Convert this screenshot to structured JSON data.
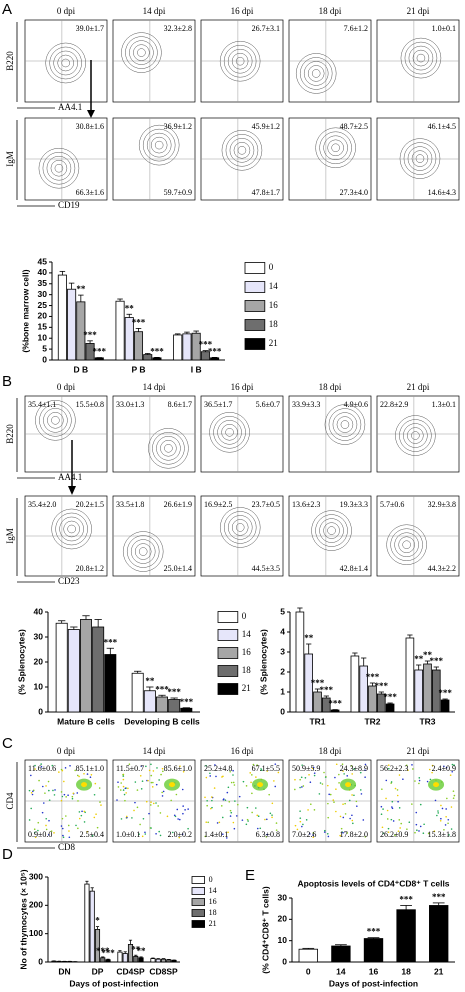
{
  "panels": [
    {
      "letter": "A",
      "headers": [
        "0 dpi",
        "14 dpi",
        "16 dpi",
        "18 dpi",
        "21 dpi"
      ],
      "rows": [
        {
          "y_label": "B220",
          "x_label": "AA4.1",
          "plots": [
            {
              "tr": "39.0±1.7"
            },
            {
              "tr": "32.3±2.8"
            },
            {
              "tr": "26.7±3.1"
            },
            {
              "tr": "7.6±1.2"
            },
            {
              "tr": "1.0±0.1"
            }
          ]
        },
        {
          "y_label": "IgM",
          "x_label": "CD19",
          "plots": [
            {
              "tr": "30.8±1.6",
              "br": "66.3±1.6"
            },
            {
              "tr": "36.9±1.2",
              "br": "59.7±0.9"
            },
            {
              "tr": "45.9±1.2",
              "br": "47.8±1.7"
            },
            {
              "tr": "48.7±2.5",
              "br": "27.3±4.0"
            },
            {
              "tr": "46.1±4.5",
              "br": "14.6±4.3"
            }
          ]
        }
      ]
    },
    {
      "letter": "B",
      "headers": [
        "0 dpi",
        "14 dpi",
        "16 dpi",
        "18 dpi",
        "21 dpi"
      ],
      "rows": [
        {
          "y_label": "B220",
          "x_label": "AA4.1",
          "plots": [
            {
              "tl": "35.4±1.1",
              "tr": "15.5±0.8"
            },
            {
              "tl": "33.0±1.3",
              "tr": "8.6±1.7"
            },
            {
              "tl": "36.5±1.7",
              "tr": "5.6±0.7"
            },
            {
              "tl": "33.9±3.3",
              "tr": "4.9±0.6"
            },
            {
              "tl": "22.8±2.9",
              "tr": "1.3±0.1"
            }
          ]
        },
        {
          "y_label": "IgM",
          "x_label": "CD23",
          "plots": [
            {
              "tl": "35.4±2.0",
              "tr": "20.2±1.5",
              "br": "20.8±1.2"
            },
            {
              "tl": "33.5±1.8",
              "tr": "26.6±1.9",
              "br": "25.0±1.4"
            },
            {
              "tl": "16.9±2.5",
              "tr": "23.7±0.5",
              "br": "44.5±3.5"
            },
            {
              "tl": "13.6±2.3",
              "tr": "19.3±3.3",
              "br": "42.8±1.4"
            },
            {
              "tl": "5.7±0.6",
              "tr": "32.9±3.8",
              "br": "44.3±2.2"
            }
          ]
        }
      ]
    },
    {
      "letter": "C",
      "headers": [
        "0 dpi",
        "14 dpi",
        "16 dpi",
        "18 dpi",
        "21 dpi"
      ],
      "rows": [
        {
          "y_label": "CD4",
          "x_label": "CD8",
          "plots": [
            {
              "tl": "11.6±0.6",
              "tr": "85.1±1.0",
              "bl": "0.9±0.0",
              "br": "2.5±0.4"
            },
            {
              "tl": "11.5±0.7",
              "tr": "85.6±1.0",
              "bl": "1.0±0.1",
              "br": "2.0±0.2"
            },
            {
              "tl": "25.2±4.8",
              "tr": "67.1±5.5",
              "bl": "1.4±0.1",
              "br": "6.3±0.8"
            },
            {
              "tl": "50.9±5.9",
              "tr": "24.3±8.9",
              "bl": "7.0±2.6",
              "br": "17.8±2.0"
            },
            {
              "tl": "56.2±2.3",
              "tr": "2.4±0.9",
              "bl": "26.2±0.9",
              "br": "15.3±1.8"
            }
          ]
        }
      ]
    }
  ],
  "chart_data": [
    {
      "type": "bar",
      "y_label": "(%bone marrow cell)",
      "categories": [
        "D B",
        "P B",
        "I B"
      ],
      "ylim": [
        0,
        45
      ],
      "yticks": [
        0,
        5,
        10,
        15,
        20,
        25,
        30,
        35,
        40,
        45
      ],
      "series": [
        {
          "name": "0",
          "color": "#ffffff",
          "values": [
            39,
            27,
            11.5
          ],
          "errors": [
            1.7,
            1,
            0.5
          ],
          "significance": [
            null,
            null,
            null
          ]
        },
        {
          "name": "14",
          "color": "#e6e6fa",
          "values": [
            32.5,
            19.5,
            12
          ],
          "errors": [
            2.8,
            1.5,
            0.8
          ],
          "significance": [
            null,
            "**",
            null
          ]
        },
        {
          "name": "16",
          "color": "#a6a6a6",
          "values": [
            26.7,
            13,
            12.3
          ],
          "errors": [
            3.1,
            1.5,
            1
          ],
          "significance": [
            "**",
            "***",
            null
          ]
        },
        {
          "name": "18",
          "color": "#6e6e6e",
          "values": [
            7.6,
            2.5,
            3.8
          ],
          "errors": [
            1.2,
            0.5,
            0.5
          ],
          "significance": [
            "***",
            null,
            "***"
          ]
        },
        {
          "name": "21",
          "color": "#000000",
          "values": [
            1,
            1,
            1
          ],
          "errors": [
            0.1,
            0.2,
            0.2
          ],
          "significance": [
            "***",
            "***",
            "***"
          ]
        }
      ]
    },
    {
      "type": "bar",
      "y_label": "(% Splenocytes)",
      "categories": [
        "Mature B cells",
        "Developing B cells"
      ],
      "ylim": [
        0,
        40
      ],
      "yticks": [
        0,
        10,
        20,
        30,
        40
      ],
      "series": [
        {
          "name": "0",
          "color": "#ffffff",
          "values": [
            35.5,
            15.5
          ],
          "errors": [
            1,
            0.8
          ],
          "significance": [
            null,
            null
          ]
        },
        {
          "name": "14",
          "color": "#e6e6fa",
          "values": [
            33,
            8.5
          ],
          "errors": [
            1,
            1.5
          ],
          "significance": [
            null,
            "**"
          ]
        },
        {
          "name": "16",
          "color": "#a6a6a6",
          "values": [
            37,
            6
          ],
          "errors": [
            1.5,
            0.7
          ],
          "significance": [
            null,
            "***"
          ]
        },
        {
          "name": "18",
          "color": "#6e6e6e",
          "values": [
            34,
            5
          ],
          "errors": [
            3,
            0.6
          ],
          "significance": [
            null,
            "***"
          ]
        },
        {
          "name": "21",
          "color": "#000000",
          "values": [
            23,
            1.5
          ],
          "errors": [
            2.5,
            0.2
          ],
          "significance": [
            "***",
            "***"
          ]
        }
      ]
    },
    {
      "type": "bar",
      "y_label": "(% Splenocytes)",
      "categories": [
        "TR1",
        "TR2",
        "TR3"
      ],
      "ylim": [
        0,
        5
      ],
      "yticks": [
        0,
        1,
        2,
        3,
        4,
        5
      ],
      "series": [
        {
          "name": "0",
          "color": "#ffffff",
          "values": [
            5.0,
            2.8,
            3.7
          ],
          "errors": [
            0.2,
            0.15,
            0.15
          ],
          "significance": [
            null,
            null,
            null
          ]
        },
        {
          "name": "14",
          "color": "#e6e6fa",
          "values": [
            2.9,
            2.3,
            2.1
          ],
          "errors": [
            0.5,
            0.4,
            0.25
          ],
          "significance": [
            "**",
            null,
            "**"
          ]
        },
        {
          "name": "16",
          "color": "#a6a6a6",
          "values": [
            1.0,
            1.3,
            2.4
          ],
          "errors": [
            0.15,
            0.15,
            0.15
          ],
          "significance": [
            "***",
            "***",
            "**"
          ]
        },
        {
          "name": "18",
          "color": "#6e6e6e",
          "values": [
            0.7,
            0.9,
            2.1
          ],
          "errors": [
            0.1,
            0.1,
            0.15
          ],
          "significance": [
            "***",
            "***",
            "***"
          ]
        },
        {
          "name": "21",
          "color": "#000000",
          "values": [
            0.1,
            0.4,
            0.6
          ],
          "errors": [
            0.02,
            0.05,
            0.05
          ],
          "significance": [
            "***",
            "***",
            "***"
          ]
        }
      ]
    },
    {
      "type": "bar",
      "letter": "D",
      "y_label": "No of thymocytes (× 10⁵)",
      "x_label": "Days of post-infection",
      "categories": [
        "DN",
        "DP",
        "CD4SP",
        "CD8SP"
      ],
      "ylim": [
        0,
        300
      ],
      "yticks": [
        0,
        100,
        200,
        300
      ],
      "series": [
        {
          "name": "0",
          "color": "#ffffff",
          "values": [
            3,
            275,
            35,
            12
          ],
          "errors": [
            1,
            10,
            5,
            2
          ],
          "significance": [
            null,
            null,
            null,
            null
          ]
        },
        {
          "name": "14",
          "color": "#e6e6fa",
          "values": [
            2,
            250,
            30,
            10
          ],
          "errors": [
            1,
            12,
            6,
            2
          ],
          "significance": [
            null,
            null,
            null,
            null
          ]
        },
        {
          "name": "16",
          "color": "#a6a6a6",
          "values": [
            2,
            115,
            62,
            10
          ],
          "errors": [
            0.5,
            10,
            15,
            2
          ],
          "significance": [
            null,
            "*",
            null,
            null
          ]
        },
        {
          "name": "18",
          "color": "#6e6e6e",
          "values": [
            2,
            15,
            20,
            8
          ],
          "errors": [
            0.5,
            3,
            4,
            1
          ],
          "significance": [
            null,
            "***",
            "**",
            null
          ]
        },
        {
          "name": "21",
          "color": "#000000",
          "values": [
            1,
            8,
            15,
            6
          ],
          "errors": [
            0.3,
            2,
            3,
            1
          ],
          "significance": [
            null,
            "***",
            "**",
            null
          ]
        }
      ]
    },
    {
      "type": "bar",
      "letter": "E",
      "title": "Apoptosis levels of CD4⁺CD8⁺ T cells",
      "y_label": "(% CD4⁺CD8⁺ T cells)",
      "x_label": "Days of post-infection",
      "categories": [
        "0",
        "14",
        "16",
        "18",
        "21"
      ],
      "values": [
        6,
        7.5,
        11,
        24.5,
        26.5
      ],
      "errors": [
        0.4,
        0.6,
        0.4,
        2,
        1.2
      ],
      "significance": [
        null,
        null,
        "***",
        "***",
        "***"
      ],
      "colors": [
        "#ffffff",
        "#000000",
        "#000000",
        "#000000",
        "#000000"
      ],
      "ylim": [
        0,
        30
      ],
      "yticks": [
        0,
        10,
        20,
        30
      ]
    }
  ]
}
